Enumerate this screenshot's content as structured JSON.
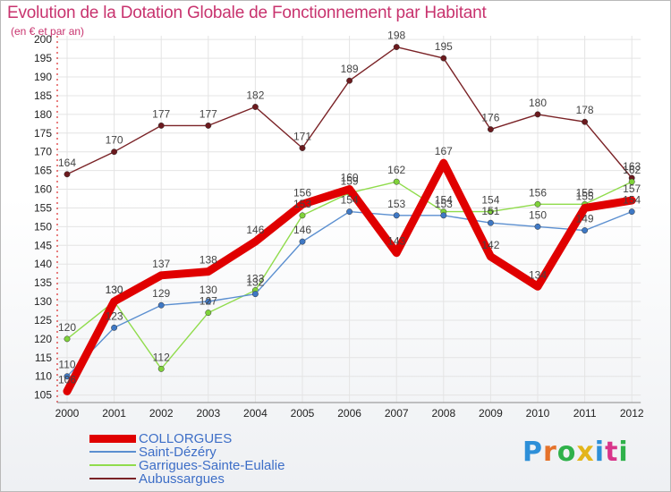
{
  "title": "Evolution de la Dotation Globale de Fonctionnement par Habitant",
  "subtitle": "(en € et par an)",
  "brand": {
    "text": "Proxiti",
    "colors": [
      "#2d8fd8",
      "#e5722a",
      "#2fb14a",
      "#e3b51b",
      "#2d8fd8",
      "#d8348a",
      "#2fb14a"
    ]
  },
  "chart_data": {
    "type": "line",
    "title": "Evolution de la Dotation Globale de Fonctionnement par Habitant",
    "subtitle": "(en € et par an)",
    "xlabel": "",
    "ylabel": "",
    "categories": [
      "2000",
      "2001",
      "2002",
      "2003",
      "2004",
      "2005",
      "2006",
      "2007",
      "2008",
      "2009",
      "2010",
      "2011",
      "2012"
    ],
    "ylim": [
      103,
      201
    ],
    "yticks": [
      105,
      110,
      115,
      120,
      125,
      130,
      135,
      140,
      145,
      150,
      155,
      160,
      165,
      170,
      175,
      180,
      185,
      190,
      195,
      200
    ],
    "grid": true,
    "legend_position": "bottom-left",
    "series": [
      {
        "name": "COLLORGUES",
        "color": "#e00000",
        "values": [
          106,
          130,
          137,
          138,
          146,
          156,
          160,
          143,
          167,
          142,
          134,
          155,
          157
        ]
      },
      {
        "name": "Saint-Dézéry",
        "color": "#5b8fd0",
        "values": [
          110,
          123,
          129,
          130,
          132,
          146,
          154,
          153,
          153,
          151,
          150,
          149,
          154
        ]
      },
      {
        "name": "Garrigues-Sainte-Eulalie",
        "color": "#90dc4c",
        "values": [
          120,
          130,
          112,
          127,
          133,
          153,
          159,
          162,
          154,
          154,
          156,
          156,
          162
        ]
      },
      {
        "name": "Aubussargues",
        "color": "#7a2226",
        "values": [
          164,
          170,
          177,
          177,
          182,
          171,
          189,
          198,
          195,
          176,
          180,
          178,
          163
        ]
      }
    ]
  }
}
